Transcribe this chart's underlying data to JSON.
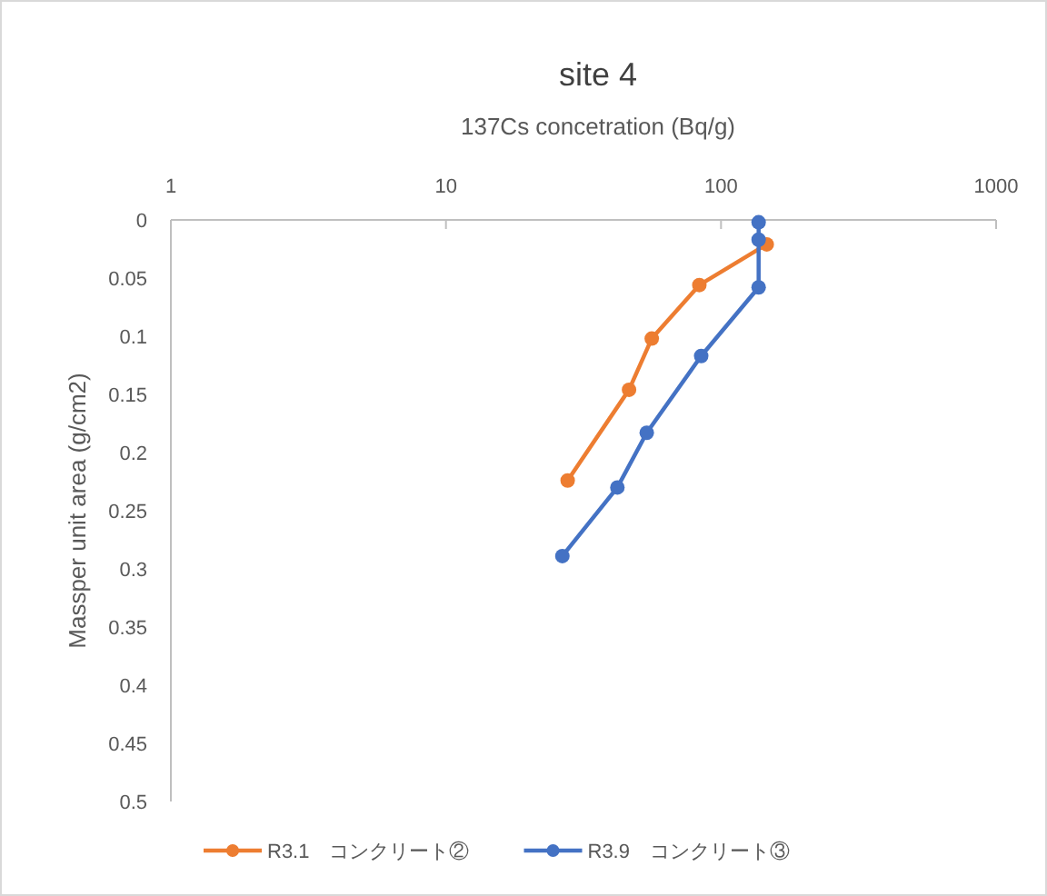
{
  "chart_data": {
    "type": "line",
    "title": "site 4",
    "xlabel": "137Cs concetration (Bq/g)",
    "ylabel": "Massper unit area (g/cm2)",
    "log": "x",
    "xlim": [
      1,
      1000
    ],
    "xticks": [
      1,
      10,
      100,
      1000
    ],
    "ylim": [
      0.5,
      0
    ],
    "yticks": [
      0,
      0.05,
      0.1,
      0.15,
      0.2,
      0.25,
      0.3,
      0.35,
      0.4,
      0.45,
      0.5
    ],
    "grid": false,
    "legend": "bottom",
    "marker": "circle",
    "line_style": "solid",
    "series": [
      {
        "name": "R3.1　コンクリート②",
        "color": "#ed7d31",
        "x": [
          146.6,
          83.4,
          56,
          46.3,
          27.7
        ],
        "values": [
          0.021,
          0.056,
          0.102,
          0.146,
          0.224
        ]
      },
      {
        "name": "R3.9　コンクリート③",
        "color": "#4472c4",
        "x": [
          137,
          137,
          137,
          84.7,
          53.7,
          42,
          26.5
        ],
        "values": [
          0.002,
          0.017,
          0.058,
          0.117,
          0.183,
          0.23,
          0.289
        ]
      }
    ]
  }
}
